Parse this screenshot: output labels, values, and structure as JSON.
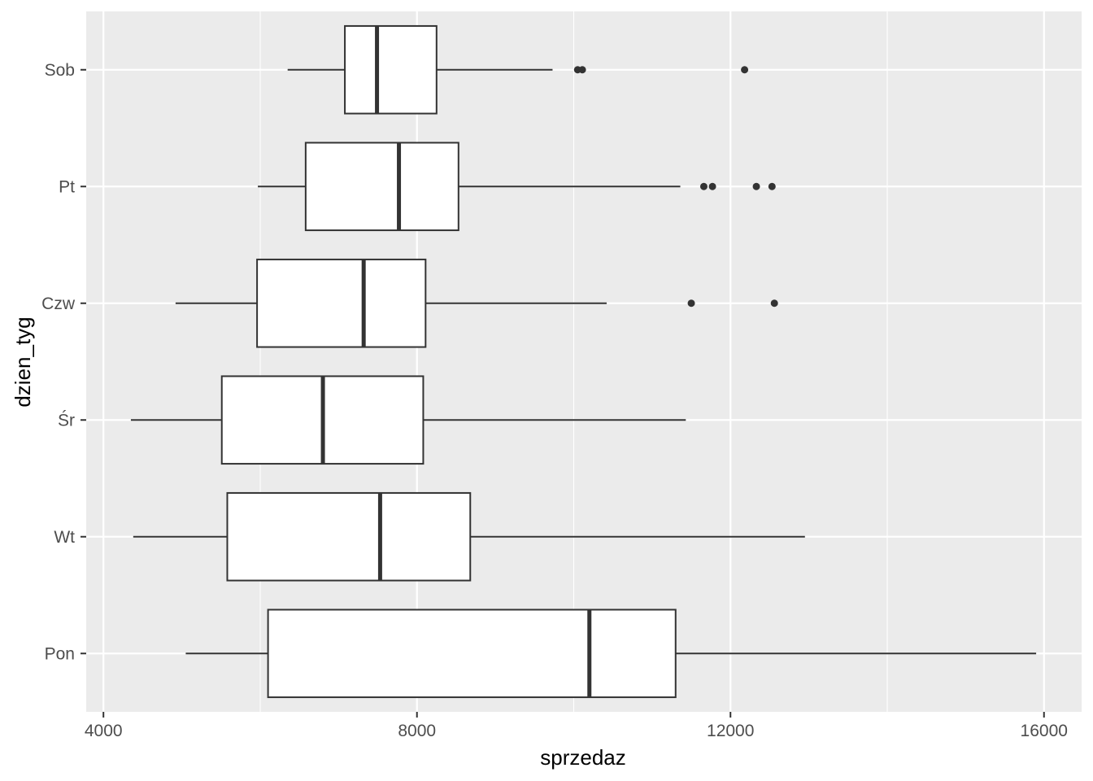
{
  "chart_data": {
    "type": "boxplot",
    "orientation": "horizontal",
    "xlabel": "sprzedaz",
    "ylabel": "dzien_tyg",
    "xlim": [
      3780,
      16480
    ],
    "x_ticks": [
      4000,
      8000,
      12000,
      16000
    ],
    "x_minor_ticks": [
      6000,
      10000,
      14000
    ],
    "grid": true,
    "legend": "none",
    "colors": {
      "panel": "#EBEBEB",
      "grid": "#FFFFFF",
      "box_fill": "#FFFFFF",
      "box_stroke": "#333333",
      "outlier": "#333333",
      "tick_label": "#4D4D4D"
    },
    "categories": [
      "Pon",
      "Wt",
      "Śr",
      "Czw",
      "Pt",
      "Sob"
    ],
    "boxes": [
      {
        "category": "Pon",
        "whisker_low": 5050,
        "q1": 6100,
        "median": 10200,
        "q3": 11300,
        "whisker_high": 15900,
        "outliers": []
      },
      {
        "category": "Wt",
        "whisker_low": 4380,
        "q1": 5580,
        "median": 7530,
        "q3": 8680,
        "whisker_high": 12950,
        "outliers": []
      },
      {
        "category": "Śr",
        "whisker_low": 4350,
        "q1": 5510,
        "median": 6800,
        "q3": 8080,
        "whisker_high": 11430,
        "outliers": []
      },
      {
        "category": "Czw",
        "whisker_low": 4920,
        "q1": 5960,
        "median": 7320,
        "q3": 8110,
        "whisker_high": 10420,
        "outliers": [
          11500,
          12560
        ]
      },
      {
        "category": "Pt",
        "whisker_low": 5970,
        "q1": 6580,
        "median": 7770,
        "q3": 8530,
        "whisker_high": 11360,
        "outliers": [
          11660,
          11770,
          12330,
          12530
        ]
      },
      {
        "category": "Sob",
        "whisker_low": 6350,
        "q1": 7080,
        "median": 7490,
        "q3": 8250,
        "whisker_high": 9730,
        "outliers": [
          10050,
          10110,
          12180
        ]
      }
    ]
  }
}
